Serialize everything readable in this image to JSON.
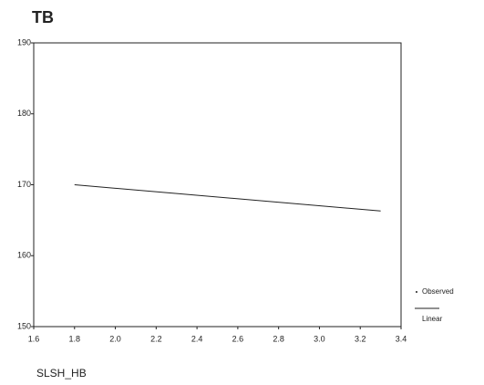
{
  "chart_data": {
    "type": "line",
    "title": "TB",
    "x_label": "SLSH_HB",
    "xlim": [
      1.6,
      3.4
    ],
    "xticks": [
      1.6,
      1.8,
      {
        "value": 2,
        "label": "2.0"
      },
      2.2,
      2.4,
      2.6,
      2.8,
      {
        "value": 3,
        "label": "3.0"
      },
      3.2,
      3.4
    ],
    "ylim": [
      150,
      190
    ],
    "yticks": [
      150,
      160,
      170,
      180,
      190
    ],
    "legend": [
      "Observed",
      "Linear"
    ],
    "series": [
      {
        "name": "Linear",
        "color": "#222222",
        "x": [
          1.8,
          3.3
        ],
        "values": [
          170,
          166.3
        ]
      }
    ]
  }
}
